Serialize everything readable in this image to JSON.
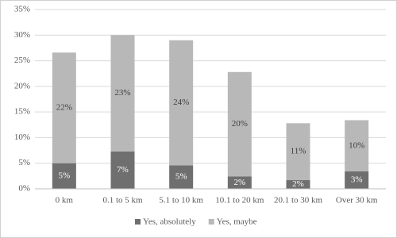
{
  "chart_data": {
    "type": "stacked-bar",
    "categories": [
      "0 km",
      "0.1 to 5 km",
      "5.1 to 10 km",
      "10.1 to 20 km",
      "20.1 to 30 km",
      "Over 30 km"
    ],
    "series": [
      {
        "name": "Yes, absolutely",
        "color": "#6f6f6f",
        "values": [
          5,
          7.3,
          4.6,
          2.4,
          1.7,
          3.4
        ],
        "value_labels": [
          "5%",
          "7%",
          "5%",
          "2%",
          "2%",
          "3%"
        ]
      },
      {
        "name": "Yes, maybe",
        "color": "#b8b8b8",
        "values": [
          21.6,
          22.7,
          24.4,
          20.4,
          11.1,
          10
        ],
        "value_labels": [
          "22%",
          "23%",
          "24%",
          "20%",
          "11%",
          "10%"
        ]
      }
    ],
    "ylim": [
      0,
      35
    ],
    "yticks": [
      {
        "value": 0,
        "label": "0%"
      },
      {
        "value": 5,
        "label": "5%"
      },
      {
        "value": 10,
        "label": "10%"
      },
      {
        "value": 15,
        "label": "15%"
      },
      {
        "value": 20,
        "label": "20%"
      },
      {
        "value": 25,
        "label": "25%"
      },
      {
        "value": 30,
        "label": "30%"
      },
      {
        "value": 35,
        "label": "35%"
      }
    ],
    "grid": true
  }
}
